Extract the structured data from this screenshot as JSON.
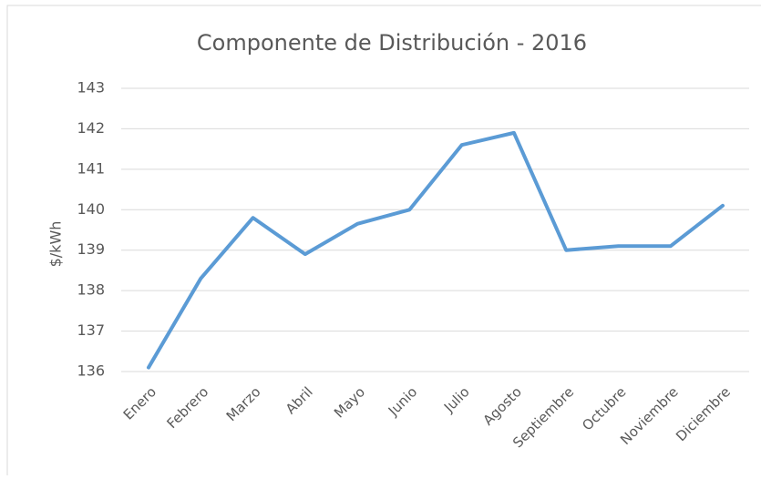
{
  "chart_data": {
    "type": "line",
    "title": "Componente de Distribución - 2016",
    "y_label": "$/kWh",
    "categories": [
      "Enero",
      "Febrero",
      "Marzo",
      "Abril",
      "Mayo",
      "Junio",
      "Julio",
      "Agosto",
      "Septiembre",
      "Octubre",
      "Noviembre",
      "Diciembre"
    ],
    "series": [
      {
        "name": "Componente de Distribución",
        "color": "#5b9bd5",
        "values": [
          136.1,
          138.3,
          139.8,
          138.9,
          139.65,
          140.0,
          141.6,
          141.9,
          139.0,
          139.1,
          139.1,
          140.1
        ]
      }
    ],
    "ylim": [
      136,
      143
    ],
    "yticks": [
      136,
      137,
      138,
      139,
      140,
      141,
      142,
      143
    ],
    "grid": true
  }
}
